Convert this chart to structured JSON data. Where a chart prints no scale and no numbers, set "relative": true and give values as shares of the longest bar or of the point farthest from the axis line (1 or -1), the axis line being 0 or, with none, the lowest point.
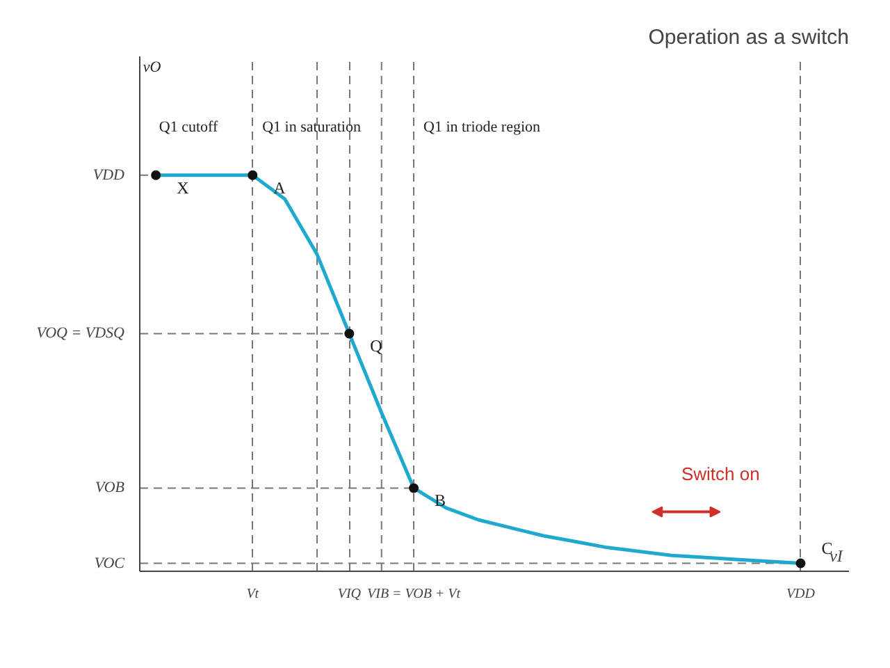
{
  "chart_data": {
    "type": "line",
    "title": "Operation as a switch",
    "relative": true,
    "xlabel": "vI",
    "categories": [
      null,
      null,
      null,
      "Vt",
      null,
      null,
      "VIQ",
      null,
      "VIB = VOB + Vt",
      null,
      null,
      null,
      null,
      null,
      null,
      null,
      null,
      null,
      null,
      null,
      "VDD"
    ],
    "series": [
      {
        "color": "#1fa9cf",
        "values": [
          1,
          1,
          1,
          1,
          0.94,
          0.8,
          0.6,
          0.4,
          0.21,
          0.16,
          0.13,
          0.11,
          0.09,
          0.075,
          0.06,
          0.05,
          0.04,
          0.035,
          0.03,
          0.025,
          0.02
        ]
      }
    ],
    "ref_lines": [
      {
        "axis": "y",
        "value": 1,
        "label": "VDD",
        "color": "#777777",
        "line_style": "dashed"
      },
      {
        "axis": "y",
        "value": 0.6,
        "label": "VOQ = VDSQ",
        "color": "#777777",
        "line_style": "dashed"
      },
      {
        "axis": "y",
        "value": 0.21,
        "label": "VOB",
        "color": "#777777",
        "line_style": "dashed"
      },
      {
        "axis": "y",
        "value": 0.02,
        "label": "VOC",
        "color": "#777777",
        "line_style": "dashed"
      }
    ],
    "annotations": [
      {
        "text": "X",
        "y": 1
      },
      {
        "text": "A",
        "x": "Vt",
        "y": 1
      },
      {
        "text": "Q",
        "x": "VIQ",
        "y": 0.6
      },
      {
        "text": "B",
        "x": "VIB = VOB + Vt",
        "y": 0.21
      },
      {
        "text": "C",
        "x": "VDD",
        "y": 0.02
      },
      "Q1 cutoff",
      "Q1 in saturation",
      "Q1 in triode region",
      "Switch on",
      "vO"
    ],
    "grid": "x",
    "marker": "none",
    "line_style": "solid"
  }
}
